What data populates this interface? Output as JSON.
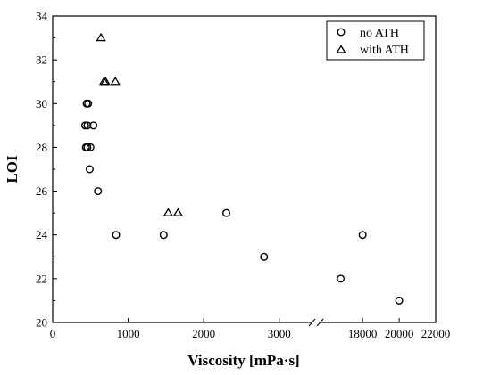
{
  "chart_data": {
    "type": "scatter",
    "title": "",
    "xlabel": "Viscosity [mPa·s]",
    "ylabel": "LOI",
    "x_axis_break": {
      "left_segment": [
        0,
        3500
      ],
      "right_segment": [
        15500,
        22000
      ]
    },
    "xlim": [
      0,
      22000
    ],
    "ylim": [
      20,
      34
    ],
    "x_ticks": [
      0,
      1000,
      2000,
      3000,
      18000,
      20000,
      22000
    ],
    "x_tick_labels": [
      "0",
      "1000",
      "2000",
      "3000",
      "18000",
      "20000",
      "22000"
    ],
    "y_ticks": [
      20,
      22,
      24,
      26,
      28,
      30,
      32,
      34
    ],
    "y_tick_labels": [
      "20",
      "22",
      "24",
      "26",
      "28",
      "30",
      "32",
      "34"
    ],
    "grid": false,
    "legend_position": "top-right",
    "series": [
      {
        "name": "no ATH",
        "marker": "circle",
        "points": [
          {
            "x": 450,
            "y": 30
          },
          {
            "x": 470,
            "y": 30
          },
          {
            "x": 430,
            "y": 29
          },
          {
            "x": 460,
            "y": 29
          },
          {
            "x": 540,
            "y": 29
          },
          {
            "x": 440,
            "y": 28
          },
          {
            "x": 460,
            "y": 28
          },
          {
            "x": 500,
            "y": 28
          },
          {
            "x": 490,
            "y": 27
          },
          {
            "x": 600,
            "y": 26
          },
          {
            "x": 840,
            "y": 24
          },
          {
            "x": 1470,
            "y": 24
          },
          {
            "x": 2300,
            "y": 25
          },
          {
            "x": 2800,
            "y": 23
          },
          {
            "x": 16800,
            "y": 22
          },
          {
            "x": 18000,
            "y": 24
          },
          {
            "x": 20000,
            "y": 21
          }
        ]
      },
      {
        "name": "with ATH",
        "marker": "triangle",
        "points": [
          {
            "x": 640,
            "y": 33
          },
          {
            "x": 680,
            "y": 31
          },
          {
            "x": 700,
            "y": 31
          },
          {
            "x": 830,
            "y": 31
          },
          {
            "x": 1530,
            "y": 25
          },
          {
            "x": 1660,
            "y": 25
          }
        ]
      }
    ]
  }
}
